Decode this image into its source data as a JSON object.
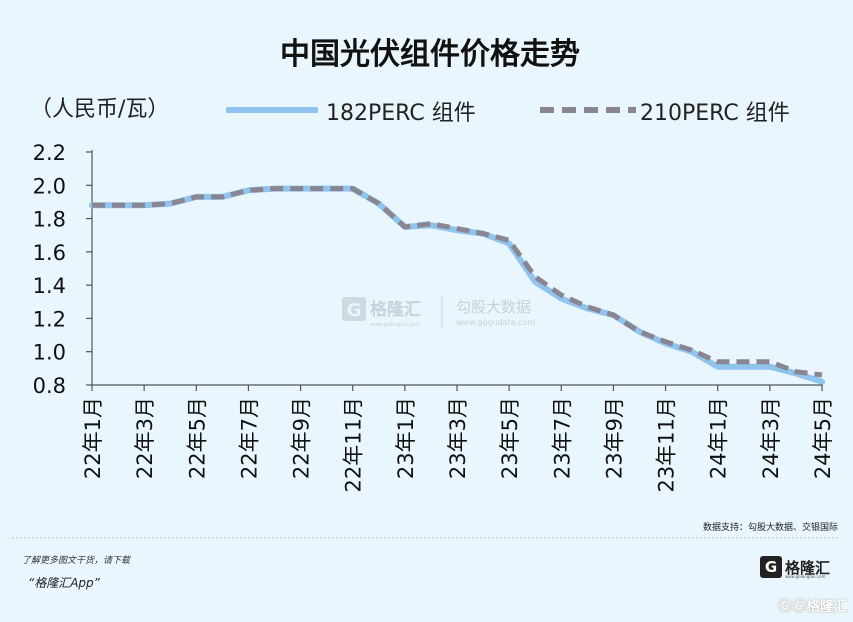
{
  "chart_data": {
    "type": "line",
    "title": "中国光伏组件价格走势",
    "unit_label": "（人民币/瓦）",
    "x": [
      "22年1月",
      "22年2月",
      "22年3月",
      "22年4月",
      "22年5月",
      "22年6月",
      "22年7月",
      "22年8月",
      "22年9月",
      "22年10月",
      "22年11月",
      "22年12月",
      "23年1月",
      "23年2月",
      "23年3月",
      "23年4月",
      "23年5月",
      "23年6月",
      "23年7月",
      "23年8月",
      "23年9月",
      "23年10月",
      "23年11月",
      "23年12月",
      "24年1月",
      "24年2月",
      "24年3月",
      "24年4月",
      "24年5月"
    ],
    "x_ticks": [
      "22年1月",
      "22年3月",
      "22年5月",
      "22年7月",
      "22年9月",
      "22年11月",
      "23年1月",
      "23年3月",
      "23年5月",
      "23年7月",
      "23年9月",
      "23年11月",
      "24年1月",
      "24年3月",
      "24年5月"
    ],
    "y_ticks": [
      "2.2",
      "2.0",
      "1.8",
      "1.6",
      "1.4",
      "1.2",
      "1.0",
      "0.8"
    ],
    "ylim": [
      0.8,
      2.2
    ],
    "series": [
      {
        "name": "182PERC 组件",
        "color": "#8fc4ef",
        "style": "solid",
        "values": [
          1.88,
          1.88,
          1.88,
          1.89,
          1.93,
          1.93,
          1.97,
          1.98,
          1.98,
          1.98,
          1.98,
          1.89,
          1.75,
          1.76,
          1.73,
          1.71,
          1.65,
          1.42,
          1.32,
          1.26,
          1.22,
          1.12,
          1.05,
          1.0,
          0.91,
          0.91,
          0.91,
          0.87,
          0.82
        ]
      },
      {
        "name": "210PERC 组件",
        "color": "#8a8592",
        "style": "dashed",
        "values": [
          1.88,
          1.88,
          1.88,
          1.89,
          1.93,
          1.93,
          1.97,
          1.98,
          1.98,
          1.98,
          1.98,
          1.89,
          1.75,
          1.77,
          1.74,
          1.71,
          1.67,
          1.45,
          1.34,
          1.27,
          1.22,
          1.12,
          1.06,
          1.01,
          0.94,
          0.94,
          0.94,
          0.88,
          0.86
        ]
      }
    ],
    "source": "数据支持：勾股大数据、交银国际"
  },
  "watermark": {
    "brand": "格隆汇",
    "brand_url": "www.gelonghui.com",
    "partner": "勾股大数据",
    "partner_url": "www.gogudata.com"
  },
  "footer": {
    "note": "了解更多图文干货，请下载",
    "app": "“格隆汇App”",
    "logo_letter": "G",
    "logo_text": "格隆汇",
    "logo_url": "www.gelonghui.com",
    "corner": "ⒼⒼ格隆汇"
  }
}
